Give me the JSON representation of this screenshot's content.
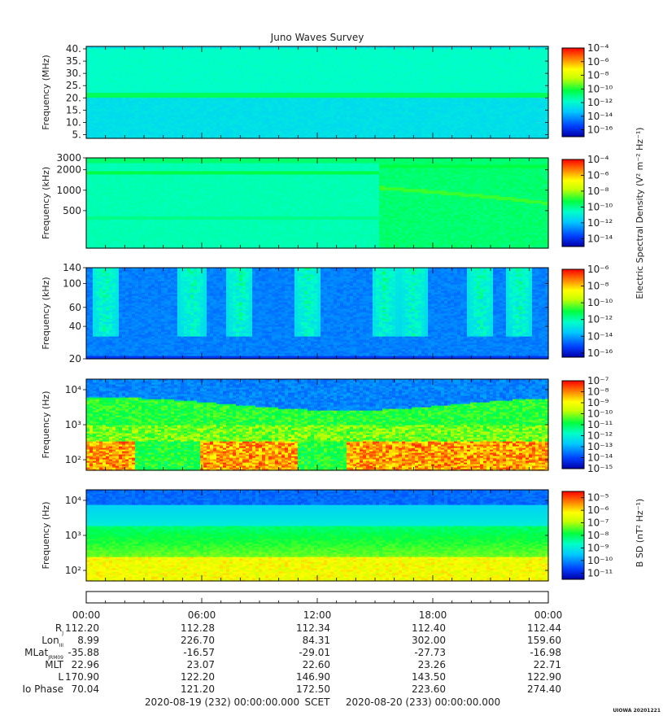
{
  "title": "Juno Waves Survey",
  "footer": {
    "start": "2020-08-19 (232) 00:00:00.000",
    "scet": "SCET",
    "end": "2020-08-20 (233) 00:00:00.000",
    "stamp": "UIOWA 20201221"
  },
  "colorbar_labels": {
    "electric": "Electric Spectral Density (V² m⁻² Hz⁻¹)",
    "magnetic": "B SD (nT² Hz⁻¹)"
  },
  "time_axis": {
    "ticks": [
      "00:00",
      "06:00",
      "12:00",
      "18:00",
      "00:00"
    ],
    "hours": [
      0,
      6,
      12,
      18,
      24
    ]
  },
  "ephemeris": [
    {
      "label": "R",
      "sub": "J",
      "values": [
        "112.20",
        "112.28",
        "112.34",
        "112.40",
        "112.44"
      ]
    },
    {
      "label": "Lon",
      "sub": "III",
      "values": [
        "8.99",
        "226.70",
        "84.31",
        "302.00",
        "159.60"
      ]
    },
    {
      "label": "MLat",
      "sub": "JRM09",
      "values": [
        "-35.88",
        "-16.57",
        "-29.01",
        "-27.73",
        "-16.98"
      ]
    },
    {
      "label": "MLT",
      "sub": "",
      "values": [
        "22.96",
        "23.07",
        "22.60",
        "23.26",
        "22.71"
      ]
    },
    {
      "label": "L",
      "sub": "",
      "values": [
        "170.90",
        "122.20",
        "146.90",
        "143.50",
        "122.90"
      ]
    },
    {
      "label": "Io Phase",
      "sub": "",
      "values": [
        "70.04",
        "121.20",
        "172.50",
        "223.60",
        "274.40"
      ]
    }
  ],
  "chart_data": [
    {
      "type": "heatmap",
      "ylabel": "Frequency (MHz)",
      "ylim": [
        3.5,
        41
      ],
      "y_scale": "linear",
      "y_ticks": [
        5,
        10,
        15,
        20,
        25,
        30,
        35,
        40
      ],
      "y_tick_labels": [
        "5.",
        "10.",
        "15.",
        "20.",
        "25.",
        "30.",
        "35.",
        "40."
      ],
      "colorbar_exponents": [
        -4,
        -6,
        -8,
        -10,
        -12,
        -14,
        -16
      ],
      "colorbar_range": [
        -17,
        -4
      ],
      "features": "steady emission band near 21 MHz"
    },
    {
      "type": "heatmap",
      "ylabel": "Frequency (kHz)",
      "ylim": [
        140,
        3000
      ],
      "y_scale": "log",
      "y_ticks": [
        500,
        1000,
        2000,
        3000
      ],
      "y_tick_labels": [
        "500",
        "1000",
        "2000",
        "3000"
      ],
      "colorbar_exponents": [
        -4,
        -6,
        -8,
        -10,
        -12,
        -14
      ],
      "colorbar_range": [
        -15,
        -4
      ],
      "features": "band near 1800 kHz until ~15h, then diffuse emission and a descending line from ~1100 to ~650 kHz"
    },
    {
      "type": "heatmap",
      "ylabel": "Frequency (kHz)",
      "ylim": [
        20,
        140
      ],
      "y_scale": "log",
      "y_ticks": [
        20,
        40,
        60,
        100,
        140
      ],
      "y_tick_labels": [
        "20",
        "40",
        "60",
        "100",
        "140"
      ],
      "colorbar_exponents": [
        -6,
        -8,
        -10,
        -12,
        -14,
        -16
      ],
      "colorbar_range": [
        -16.5,
        -6
      ],
      "features": "sporadic bursts near 1, 5.5, 8, 11.5, 17, 20.5 h"
    },
    {
      "type": "heatmap",
      "ylabel": "Frequency (Hz)",
      "ylim": [
        50,
        20000
      ],
      "y_scale": "log",
      "y_ticks": [
        100,
        1000,
        10000
      ],
      "y_tick_labels": [
        "10²",
        "10³",
        "10⁴"
      ],
      "colorbar_exponents": [
        -7,
        -8,
        -9,
        -10,
        -11,
        -12,
        -13,
        -14,
        -15
      ],
      "colorbar_range": [
        -15,
        -7
      ],
      "features": "intense low-frequency hiss below ~400 Hz, upper cutoff near 4-8 kHz"
    },
    {
      "type": "heatmap",
      "ylabel": "Frequency (Hz)",
      "ylim": [
        50,
        20000
      ],
      "y_scale": "log",
      "y_ticks": [
        100,
        1000,
        10000
      ],
      "y_tick_labels": [
        "10²",
        "10³",
        "10⁴"
      ],
      "colorbar_exponents": [
        -5,
        -6,
        -7,
        -8,
        -9,
        -10,
        -11
      ],
      "colorbar_range": [
        -11.5,
        -4.5
      ],
      "features": "magnetic spectral density decreasing with frequency"
    }
  ]
}
